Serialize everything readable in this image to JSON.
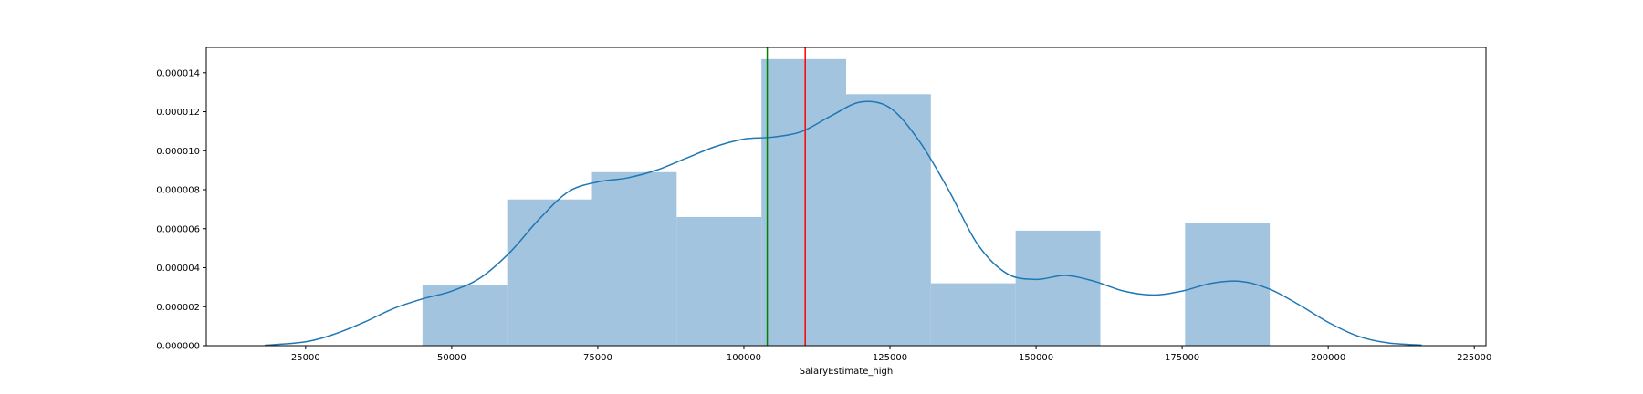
{
  "chart_data": {
    "type": "bar",
    "xlabel": "SalaryEstimate_high",
    "ylabel": "",
    "xlim": [
      8000,
      227000
    ],
    "ylim": [
      0,
      1.53e-05
    ],
    "xticks": [
      25000,
      50000,
      75000,
      100000,
      125000,
      150000,
      175000,
      200000,
      225000
    ],
    "xtick_labels": [
      "25000",
      "50000",
      "75000",
      "100000",
      "125000",
      "150000",
      "175000",
      "200000",
      "225000"
    ],
    "yticks": [
      0,
      2e-06,
      4e-06,
      6e-06,
      8e-06,
      1e-05,
      1.2e-05,
      1.4e-05
    ],
    "ytick_labels": [
      "0.000000",
      "0.000002",
      "0.000004",
      "0.000006",
      "0.000008",
      "0.000010",
      "0.000012",
      "0.000014"
    ],
    "grid": false,
    "histogram": {
      "bin_edges": [
        45000,
        59500,
        74000,
        88500,
        103000,
        117500,
        132000,
        146500,
        161000,
        175500,
        190000
      ],
      "values": [
        3.1e-06,
        7.5e-06,
        8.9e-06,
        6.6e-06,
        1.47e-05,
        1.29e-05,
        3.2e-06,
        5.9e-06,
        0,
        6.3e-06
      ],
      "color": "#a3c4df"
    },
    "kde": {
      "color": "#1f77b4",
      "x": [
        18000,
        25000,
        30000,
        35000,
        40000,
        45000,
        50000,
        55000,
        60000,
        65000,
        70000,
        75000,
        80000,
        85000,
        90000,
        95000,
        100000,
        105000,
        110000,
        115000,
        120000,
        125000,
        130000,
        135000,
        140000,
        145000,
        150000,
        155000,
        160000,
        165000,
        170000,
        175000,
        180000,
        185000,
        190000,
        195000,
        200000,
        205000,
        210000,
        216000
      ],
      "y": [
        2e-08,
        2e-07,
        6e-07,
        1.2e-06,
        1.9e-06,
        2.4e-06,
        2.8e-06,
        3.5e-06,
        4.8e-06,
        6.5e-06,
        7.9e-06,
        8.4e-06,
        8.6e-06,
        9e-06,
        9.6e-06,
        1.02e-05,
        1.06e-05,
        1.07e-05,
        1.1e-05,
        1.18e-05,
        1.25e-05,
        1.22e-05,
        1.05e-05,
        8e-06,
        5.2e-06,
        3.7e-06,
        3.4e-06,
        3.6e-06,
        3.3e-06,
        2.8e-06,
        2.6e-06,
        2.8e-06,
        3.2e-06,
        3.3e-06,
        2.9e-06,
        2.1e-06,
        1.2e-06,
        5e-07,
        1.5e-07,
        3e-08
      ]
    },
    "vlines": [
      {
        "x": 104000,
        "color": "#008000"
      },
      {
        "x": 110500,
        "color": "#ff0000"
      }
    ]
  }
}
